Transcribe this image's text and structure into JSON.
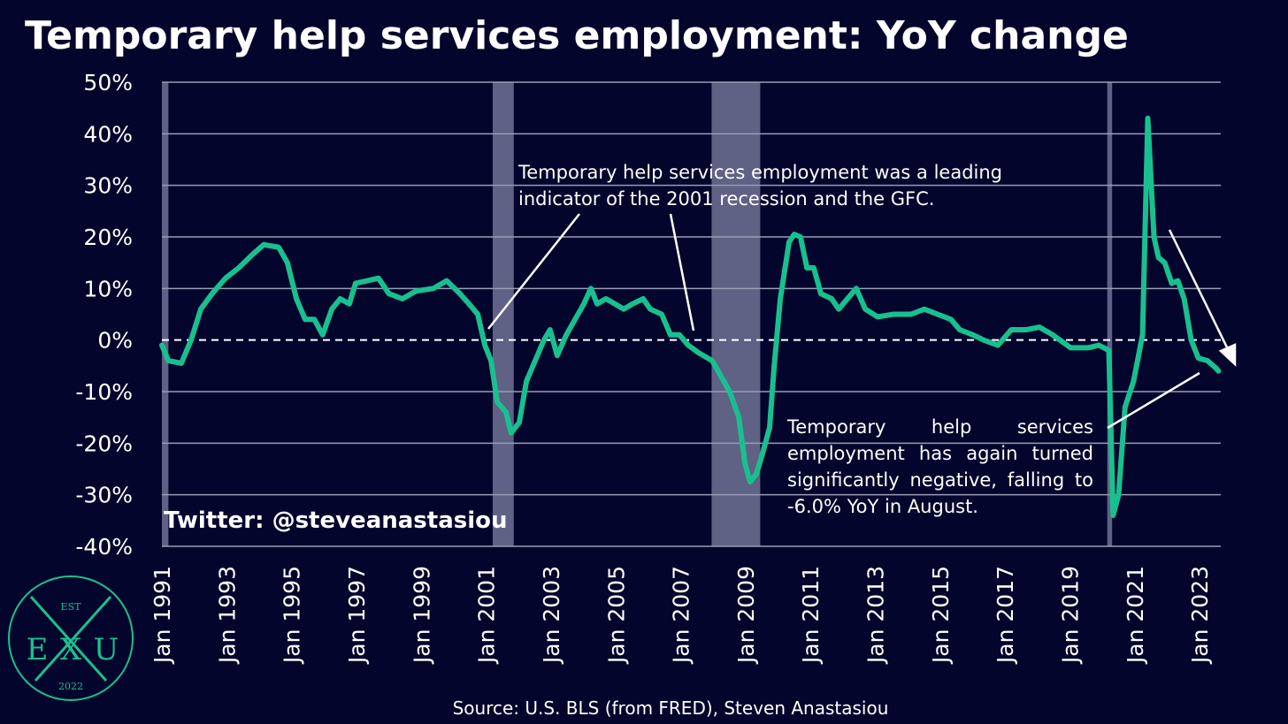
{
  "chart_data": {
    "type": "line",
    "title": "Temporary help services employment: YoY change",
    "source": "Source: U.S. BLS (from FRED), Steven Anastasiou",
    "watermark": "Twitter: @steveanastasiou",
    "annotations": [
      "Temporary help services employment was a leading indicator of the 2001 recession and the GFC.",
      "Temporary help services employment has again turned significantly negative, falling to -6.0% YoY in August."
    ],
    "logo": {
      "top": "EST",
      "left": "E",
      "middle": "X",
      "right": "U",
      "bottom": "2022"
    },
    "color": "#19c08f",
    "recession_color": "#5f6185",
    "recessions": [
      [
        1991.0,
        1991.2
      ],
      [
        2001.2,
        2001.85
      ],
      [
        2007.95,
        2009.45
      ],
      [
        2020.15,
        2020.3
      ]
    ],
    "x": [
      1991.0,
      1991.2,
      1991.6,
      1991.9,
      1992.2,
      1992.55,
      1992.96,
      1993.37,
      1993.78,
      1994.14,
      1994.6,
      1994.87,
      1995.15,
      1995.42,
      1995.7,
      1995.96,
      1996.24,
      1996.5,
      1996.78,
      1996.97,
      1997.33,
      1997.68,
      1998.0,
      1998.42,
      1998.83,
      1999.37,
      1999.78,
      2000.19,
      2000.47,
      2000.74,
      2000.96,
      2001.15,
      2001.34,
      2001.61,
      2001.77,
      2002.02,
      2002.24,
      2002.51,
      2002.78,
      2002.97,
      2003.19,
      2003.47,
      2003.74,
      2004.01,
      2004.23,
      2004.42,
      2004.69,
      2004.97,
      2005.24,
      2005.51,
      2005.84,
      2006.06,
      2006.41,
      2006.68,
      2006.96,
      2007.23,
      2007.56,
      2007.97,
      2008.24,
      2008.51,
      2008.79,
      2008.98,
      2009.14,
      2009.33,
      2009.52,
      2009.74,
      2009.88,
      2010.07,
      2010.34,
      2010.5,
      2010.69,
      2010.89,
      2011.1,
      2011.32,
      2011.65,
      2011.87,
      2012.14,
      2012.41,
      2012.69,
      2013.07,
      2013.56,
      2014.1,
      2014.51,
      2014.92,
      2015.33,
      2015.6,
      2016.01,
      2016.34,
      2016.78,
      2017.19,
      2017.65,
      2018.06,
      2018.47,
      2019.02,
      2019.56,
      2019.89,
      2020.2,
      2020.33,
      2020.5,
      2020.7,
      2020.96,
      2021.24,
      2021.4,
      2021.59,
      2021.73,
      2021.92,
      2022.14,
      2022.33,
      2022.52,
      2022.74,
      2022.96,
      2023.24,
      2023.51,
      2023.58
    ],
    "values": [
      -1,
      -4,
      -4.5,
      0,
      6,
      9,
      12,
      14,
      16.5,
      18.5,
      18,
      15,
      8,
      4,
      4,
      1,
      6,
      8,
      7,
      11,
      11.5,
      12,
      9,
      8,
      9.5,
      10,
      11.5,
      9,
      7,
      5,
      -1,
      -4,
      -12,
      -14,
      -18,
      -16,
      -8,
      -4,
      0,
      2,
      -3,
      1,
      4,
      7,
      10,
      7,
      8,
      7,
      6,
      7,
      8,
      6,
      5,
      1,
      1,
      -1,
      -2.5,
      -4,
      -7,
      -10,
      -15,
      -24,
      -27.5,
      -26,
      -22,
      -17,
      -5,
      8,
      19,
      20.5,
      20,
      14,
      14,
      9,
      8,
      6,
      8,
      10,
      6,
      4.5,
      5,
      5,
      6,
      5,
      4,
      2,
      1,
      0,
      -1,
      2,
      2,
      2.5,
      1,
      -1.5,
      -1.5,
      -1,
      -2,
      -34,
      -30,
      -13,
      -8,
      1,
      43,
      20,
      16,
      15,
      11,
      11.5,
      8,
      0,
      -3.5,
      -4,
      -5.5,
      -6
    ],
    "xlim": [
      1991,
      2023.65
    ],
    "xticks": [
      {
        "value": 1991,
        "label": "Jan 1991"
      },
      {
        "value": 1993,
        "label": "Jan 1993"
      },
      {
        "value": 1995,
        "label": "Jan 1995"
      },
      {
        "value": 1997,
        "label": "Jan 1997"
      },
      {
        "value": 1999,
        "label": "Jan 1999"
      },
      {
        "value": 2001,
        "label": "Jan 2001"
      },
      {
        "value": 2003,
        "label": "Jan 2003"
      },
      {
        "value": 2005,
        "label": "Jan 2005"
      },
      {
        "value": 2007,
        "label": "Jan 2007"
      },
      {
        "value": 2009,
        "label": "Jan 2009"
      },
      {
        "value": 2011,
        "label": "Jan 2011"
      },
      {
        "value": 2013,
        "label": "Jan 2013"
      },
      {
        "value": 2015,
        "label": "Jan 2015"
      },
      {
        "value": 2017,
        "label": "Jan 2017"
      },
      {
        "value": 2019,
        "label": "Jan 2019"
      },
      {
        "value": 2021,
        "label": "Jan 2021"
      },
      {
        "value": 2023,
        "label": "Jan 2023"
      }
    ],
    "ylim": [
      -40,
      50
    ],
    "yticks": [
      {
        "value": -40,
        "label": "-40%"
      },
      {
        "value": -30,
        "label": "-30%"
      },
      {
        "value": -20,
        "label": "-20%"
      },
      {
        "value": -10,
        "label": "-10%"
      },
      {
        "value": 0,
        "label": "0%"
      },
      {
        "value": 10,
        "label": "10%"
      },
      {
        "value": 20,
        "label": "20%"
      },
      {
        "value": 30,
        "label": "30%"
      },
      {
        "value": 40,
        "label": "40%"
      },
      {
        "value": 50,
        "label": "50%"
      }
    ],
    "grid": true
  }
}
